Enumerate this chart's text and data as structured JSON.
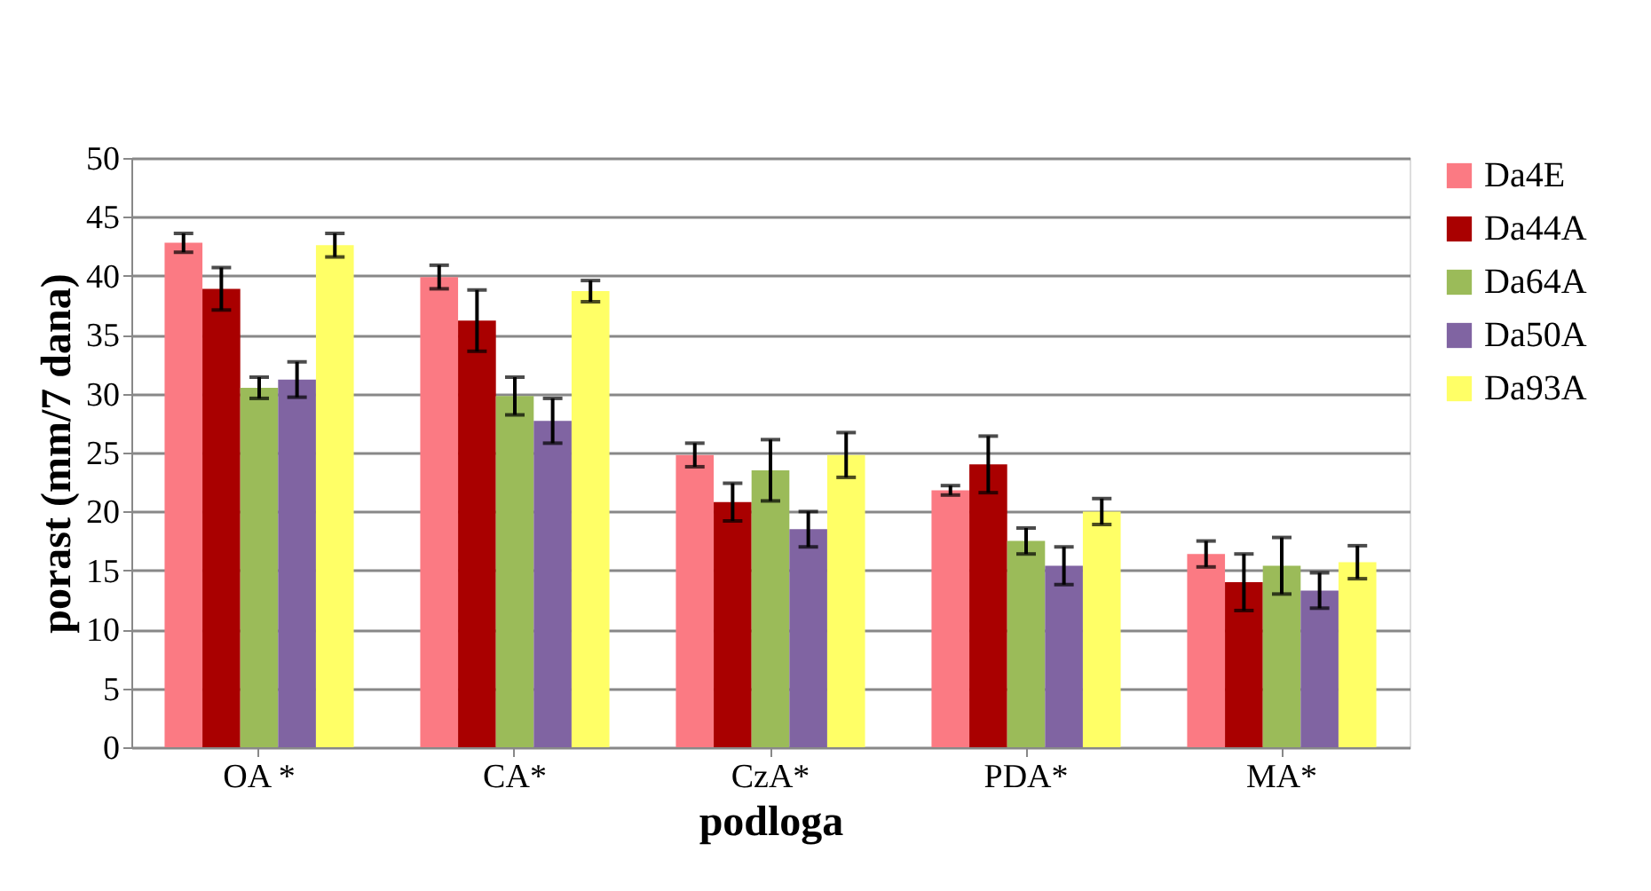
{
  "chart_data": {
    "type": "bar",
    "xlabel": "podloga",
    "ylabel": "porast (mm/7 dana)",
    "categories": [
      "OA *",
      "CA*",
      "CzA*",
      "PDA*",
      "MA*"
    ],
    "series": [
      {
        "name": "Da4E",
        "color": "#fb7a83",
        "values": [
          42.8,
          39.9,
          24.8,
          21.8,
          16.4
        ],
        "errors": [
          0.8,
          1.0,
          1.0,
          0.4,
          1.1
        ]
      },
      {
        "name": "Da44A",
        "color": "#a90000",
        "values": [
          38.9,
          36.2,
          20.8,
          24.0,
          14.0
        ],
        "errors": [
          1.8,
          2.6,
          1.6,
          2.4,
          2.4
        ]
      },
      {
        "name": "Da64A",
        "color": "#9bbb59",
        "values": [
          30.5,
          29.8,
          23.5,
          17.5,
          15.4
        ],
        "errors": [
          0.9,
          1.6,
          2.6,
          1.1,
          2.4
        ]
      },
      {
        "name": "Da50A",
        "color": "#8064a2",
        "values": [
          31.2,
          27.7,
          18.5,
          15.4,
          13.3
        ],
        "errors": [
          1.5,
          1.9,
          1.5,
          1.6,
          1.5
        ]
      },
      {
        "name": "Da93A",
        "color": "#ffff66",
        "values": [
          42.6,
          38.7,
          24.8,
          20.0,
          15.7
        ],
        "errors": [
          1.0,
          0.9,
          1.9,
          1.1,
          1.4
        ]
      }
    ],
    "ylim": [
      0,
      50
    ],
    "yticks": [
      0,
      5,
      10,
      15,
      20,
      25,
      30,
      35,
      40,
      45,
      50
    ],
    "grid": "y",
    "legend": "right"
  }
}
